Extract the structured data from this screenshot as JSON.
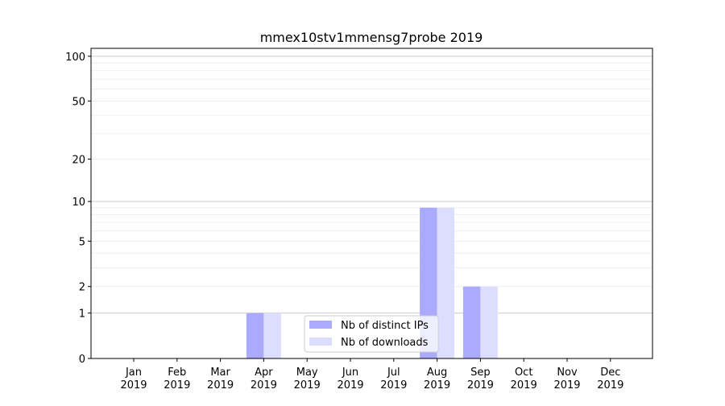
{
  "chart_data": {
    "type": "bar",
    "title": "mmex10stv1mmensg7probe 2019",
    "xlabel": "",
    "ylabel": "",
    "yscale": "log(1+y)",
    "ylim": [
      0,
      113
    ],
    "yticks": [
      0,
      1,
      2,
      5,
      10,
      20,
      50,
      100
    ],
    "ytick_labels": [
      "0",
      "1",
      "2",
      "5",
      "10",
      "20",
      "50",
      "100"
    ],
    "minor_grid": [
      3,
      4,
      6,
      7,
      8,
      9,
      30,
      40,
      60,
      70,
      80,
      90
    ],
    "grid": true,
    "categories": [
      "Jan\n2019",
      "Feb\n2019",
      "Mar\n2019",
      "Apr\n2019",
      "May\n2019",
      "Jun\n2019",
      "Jul\n2019",
      "Aug\n2019",
      "Sep\n2019",
      "Oct\n2019",
      "Nov\n2019",
      "Dec\n2019"
    ],
    "series": [
      {
        "name": "Nb of distinct IPs",
        "color": "#aaaaff",
        "values": [
          0,
          0,
          0,
          1,
          0,
          0,
          0,
          9,
          2,
          0,
          0,
          0
        ]
      },
      {
        "name": "Nb of downloads",
        "color": "#ddddff",
        "values": [
          0,
          0,
          0,
          1,
          0,
          0,
          0,
          9,
          2,
          0,
          0,
          0
        ]
      }
    ],
    "legend_placement": "lower-center"
  }
}
